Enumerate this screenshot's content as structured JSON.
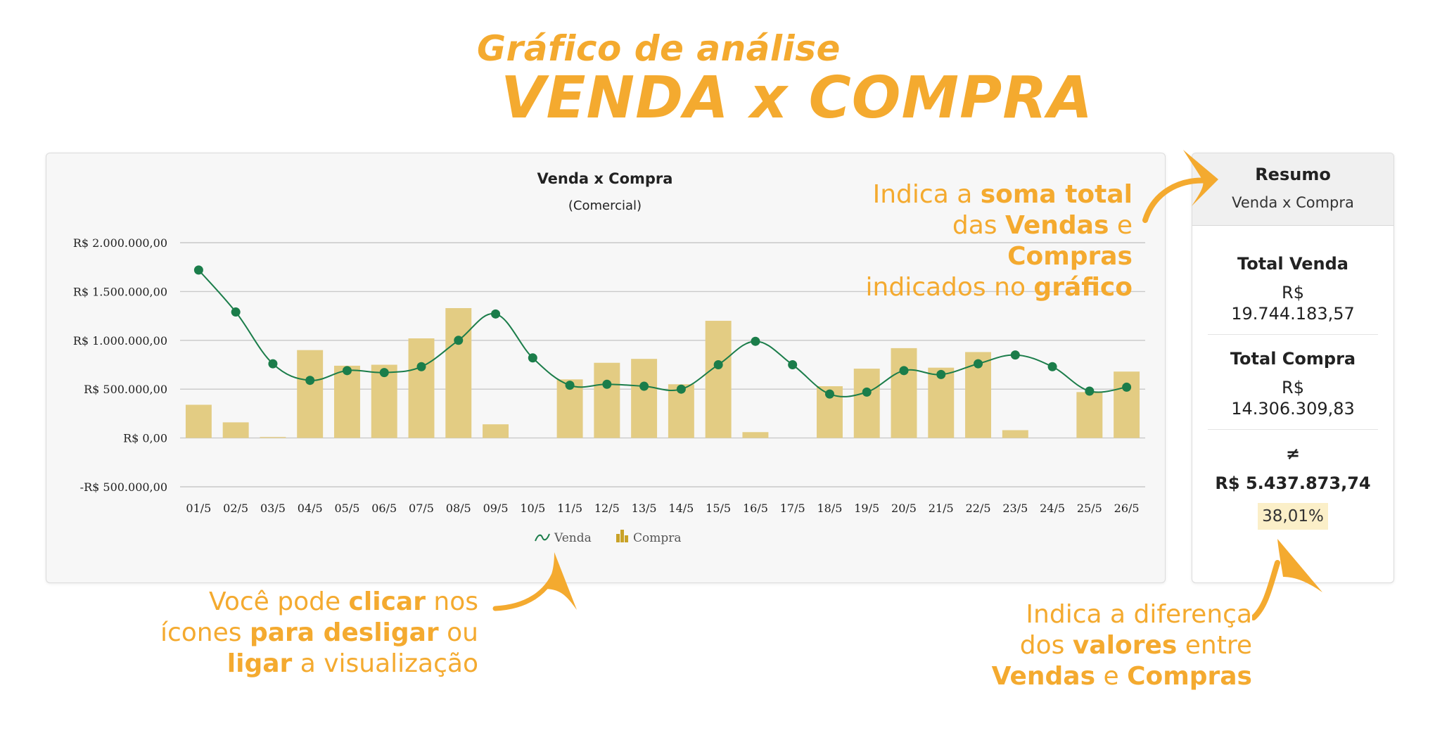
{
  "header": {
    "line1": "Gráfico de análise",
    "line2": "VENDA x COMPRA"
  },
  "chart_data": {
    "type": "bar",
    "title": "Venda x Compra",
    "subtitle": "(Comercial)",
    "categories": [
      "01/5",
      "02/5",
      "03/5",
      "04/5",
      "05/5",
      "06/5",
      "07/5",
      "08/5",
      "09/5",
      "10/5",
      "11/5",
      "12/5",
      "13/5",
      "14/5",
      "15/5",
      "16/5",
      "17/5",
      "18/5",
      "19/5",
      "20/5",
      "21/5",
      "22/5",
      "23/5",
      "24/5",
      "25/5",
      "26/5"
    ],
    "yticks": [
      "R$ 2.000.000,00",
      "R$ 1.500.000,00",
      "R$ 1.000.000,00",
      "R$ 500.000,00",
      "R$ 0,00",
      "-R$ 500.000,00"
    ],
    "ylim": [
      -500000,
      2000000
    ],
    "grid": true,
    "legend_position": "bottom",
    "series": [
      {
        "name": "Venda",
        "type": "line",
        "color": "#1b7d4a",
        "values": [
          1720000,
          1290000,
          760000,
          590000,
          690000,
          670000,
          730000,
          1000000,
          1270000,
          820000,
          540000,
          550000,
          530000,
          500000,
          750000,
          990000,
          750000,
          450000,
          470000,
          690000,
          650000,
          760000,
          850000,
          730000,
          480000,
          520000
        ]
      },
      {
        "name": "Compra",
        "type": "bar",
        "color": "#e3cc83",
        "values": [
          340000,
          160000,
          10000,
          900000,
          740000,
          750000,
          1020000,
          1330000,
          140000,
          0,
          600000,
          770000,
          810000,
          550000,
          1200000,
          60000,
          0,
          530000,
          710000,
          920000,
          720000,
          880000,
          80000,
          0,
          470000,
          680000
        ]
      }
    ]
  },
  "annotations": {
    "top": {
      "pre": "Indica a ",
      "b1": "soma total",
      "l2a": "das ",
      "b2": "Vendas",
      "l2b": " e ",
      "b3": "Compras",
      "l3a": "indicados no  ",
      "b4": "gráfico"
    },
    "bottom": {
      "pre": "Você pode ",
      "b1": "clicar",
      "l1b": " nos",
      "l2a": "ícones ",
      "b2": "para desligar",
      "l2b": " ou",
      "b3": "ligar",
      "l3b": " a visualização"
    },
    "right": {
      "l1": "Indica a diferença",
      "l2a": "dos ",
      "b1": "valores",
      "l2b": " entre",
      "b2": "Vendas",
      "l3b": " e ",
      "b3": "Compras"
    }
  },
  "summary": {
    "title": "Resumo",
    "subtitle": "Venda x Compra",
    "total_venda_label": "Total Venda",
    "total_venda_currency": "R$",
    "total_venda_value": "19.744.183,57",
    "total_compra_label": "Total Compra",
    "total_compra_currency": "R$",
    "total_compra_value": "14.306.309,83",
    "diff_symbol": "≠",
    "diff_value": "R$ 5.437.873,74",
    "diff_percent": "38,01%"
  },
  "colors": {
    "accent": "#f4aa2f",
    "venda": "#1b7d4a",
    "compra": "#e3cc83",
    "compra_legend": "#c9a227"
  }
}
